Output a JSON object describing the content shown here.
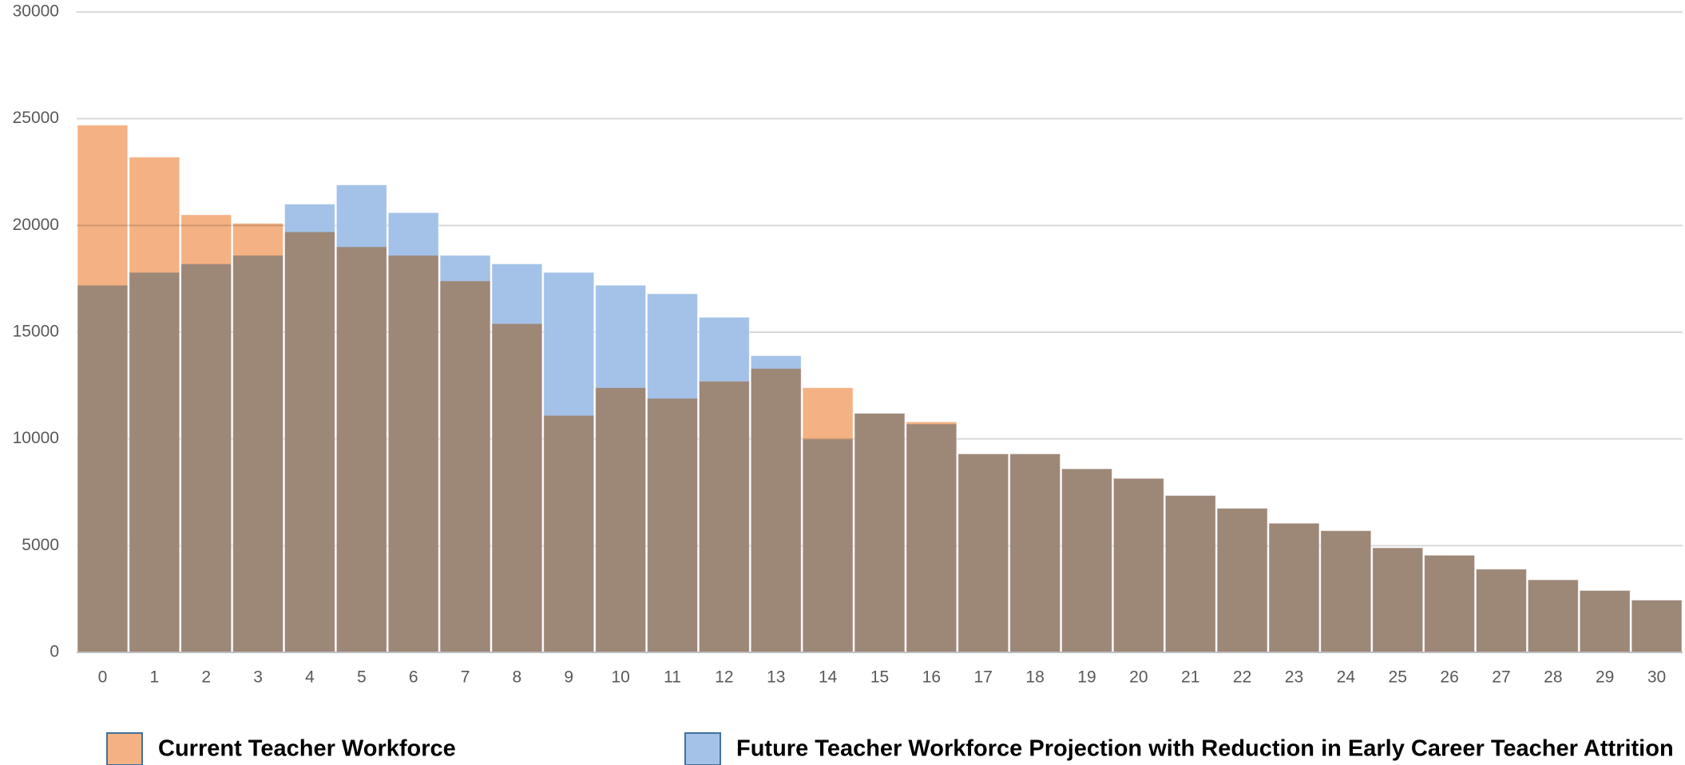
{
  "chart_data": {
    "type": "bar",
    "overlap": true,
    "categories": [
      "0",
      "1",
      "2",
      "3",
      "4",
      "5",
      "6",
      "7",
      "8",
      "9",
      "10",
      "11",
      "12",
      "13",
      "14",
      "15",
      "16",
      "17",
      "18",
      "19",
      "20",
      "21",
      "22",
      "23",
      "24",
      "25",
      "26",
      "27",
      "28",
      "29",
      "30"
    ],
    "series": [
      {
        "name": "Current Teacher Workforce",
        "color": "#f4b183",
        "values": [
          24700,
          23200,
          20500,
          20100,
          19700,
          19000,
          18600,
          17400,
          15400,
          11100,
          12400,
          11900,
          12700,
          13300,
          12400,
          11200,
          10800,
          9300,
          9300,
          8600,
          8150,
          7350,
          6750,
          6050,
          5700,
          4900,
          4550,
          3900,
          3400,
          2900,
          2450
        ]
      },
      {
        "name": "Future Teacher Workforce Projection with Reduction in Early Career Teacher Attrition",
        "color": "#a4c2e8",
        "values": [
          17200,
          17800,
          18200,
          18600,
          21000,
          21900,
          20600,
          18600,
          18200,
          17800,
          17200,
          16800,
          15700,
          13900,
          10000,
          11200,
          10700,
          9300,
          9300,
          8600,
          8150,
          7350,
          6750,
          6050,
          5700,
          4900,
          4550,
          3900,
          3400,
          2900,
          2450
        ]
      }
    ],
    "ylim": [
      0,
      30000
    ],
    "yticks": [
      0,
      5000,
      10000,
      15000,
      20000,
      25000,
      30000
    ],
    "grid": true
  }
}
